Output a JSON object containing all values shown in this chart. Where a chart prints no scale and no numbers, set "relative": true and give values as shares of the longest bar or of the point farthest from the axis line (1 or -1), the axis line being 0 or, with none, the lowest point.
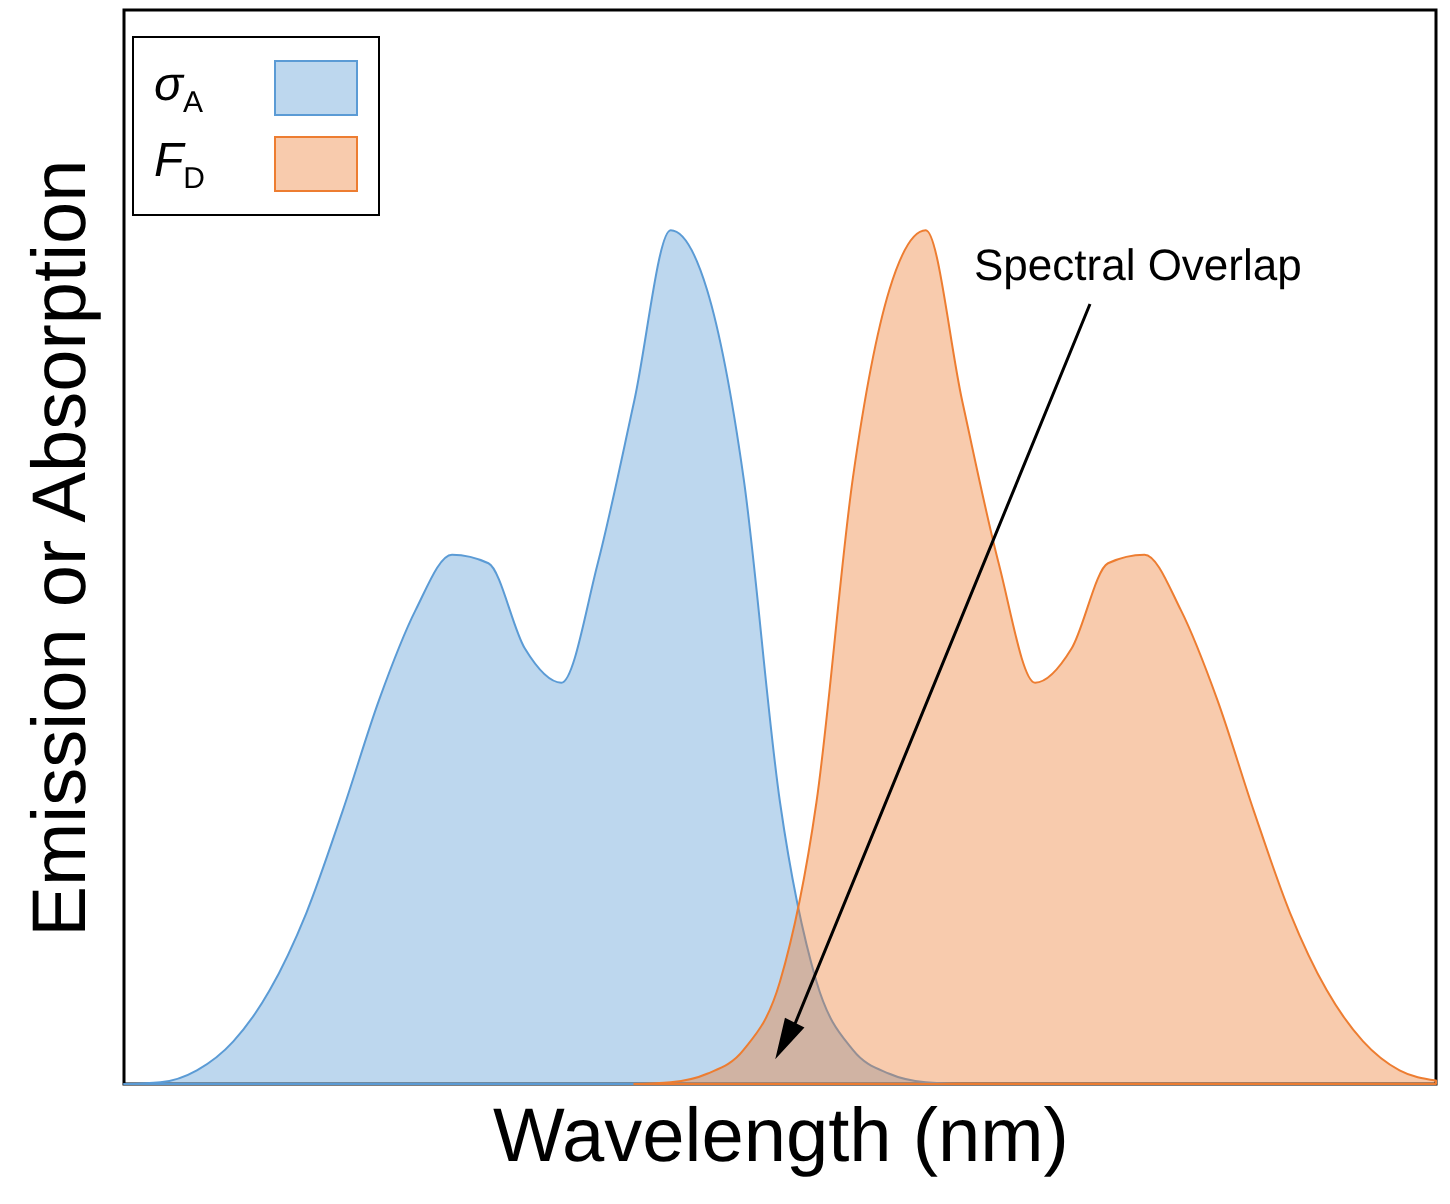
{
  "chart_data": {
    "type": "area",
    "relative": true,
    "xlabel": "Wavelength (nm)",
    "ylabel": "Emission or Absorption",
    "categories": [
      null,
      null,
      null,
      null,
      null,
      null,
      null,
      null,
      null,
      null,
      null,
      null,
      null,
      null,
      null,
      null,
      null,
      null,
      null,
      null,
      null,
      null,
      null,
      null,
      null,
      null,
      null,
      null,
      null,
      null,
      null,
      null,
      null,
      null,
      null,
      null,
      null
    ],
    "series": [
      {
        "name": "σ$_{A}$",
        "color": "#5b9bd5",
        "values": [
          0,
          0.002,
          0.016,
          0.05,
          0.11,
          0.2,
          0.32,
          0.45,
          0.555,
          0.62,
          0.61,
          0.51,
          0.47,
          0.61,
          0.8,
          1,
          0.93,
          0.71,
          0.33,
          0.12,
          0.04,
          0.012,
          0.002,
          0,
          null,
          null,
          null,
          null,
          null,
          null,
          null,
          null,
          null,
          null,
          null,
          null,
          null
        ]
      },
      {
        "name": "F$_{D}$",
        "color": "#ed7d31",
        "values": [
          null,
          null,
          null,
          null,
          null,
          null,
          null,
          null,
          null,
          null,
          null,
          null,
          null,
          null,
          0,
          0.002,
          0.012,
          0.04,
          0.12,
          0.33,
          0.71,
          0.93,
          1,
          0.8,
          0.61,
          0.47,
          0.51,
          0.61,
          0.62,
          0.555,
          0.45,
          0.32,
          0.2,
          0.11,
          0.05,
          0.016,
          0.004
        ]
      }
    ],
    "legend": "top left",
    "annotations": [
      "Spectral Overlap"
    ]
  }
}
